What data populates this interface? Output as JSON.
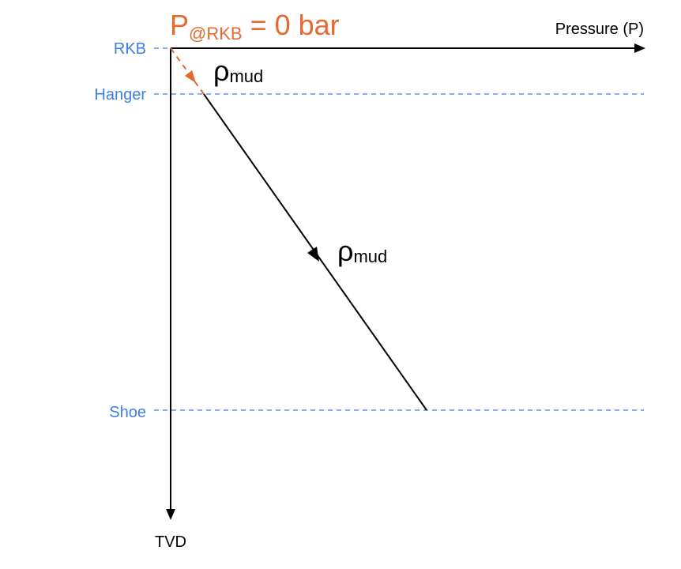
{
  "title": {
    "symbol": "P",
    "subscript": "@RKB",
    "rest": "= 0 bar"
  },
  "axes": {
    "x_label": "Pressure (P)",
    "y_label": "TVD"
  },
  "depth_levels": [
    {
      "label": "RKB"
    },
    {
      "label": "Hanger"
    },
    {
      "label": "Shoe"
    }
  ],
  "segments": [
    {
      "symbol": "ρ",
      "subscript": "mud"
    },
    {
      "symbol": "ρ",
      "subscript": "mud"
    }
  ]
}
